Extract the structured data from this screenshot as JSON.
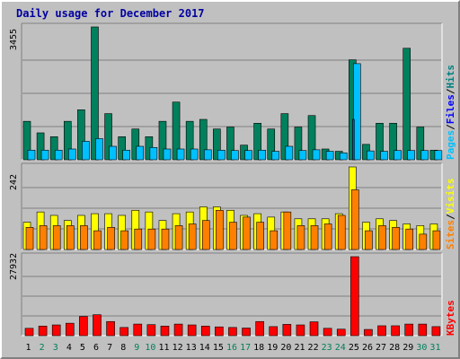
{
  "chart_data": {
    "type": "bar",
    "title": "Daily usage for December 2017",
    "categories": [
      "1",
      "2",
      "3",
      "4",
      "5",
      "6",
      "7",
      "8",
      "9",
      "10",
      "11",
      "12",
      "13",
      "14",
      "15",
      "16",
      "17",
      "18",
      "19",
      "20",
      "21",
      "22",
      "23",
      "24",
      "25",
      "26",
      "27",
      "28",
      "29",
      "30",
      "31"
    ],
    "weekend_days": [
      "2",
      "3",
      "9",
      "10",
      "16",
      "17",
      "23",
      "24",
      "30",
      "31"
    ],
    "panels": [
      {
        "id": "hits_files_pages",
        "ymax": 3455,
        "ymax_label": "3455",
        "right_labels": [
          {
            "text": "Hits",
            "color": "#008080"
          },
          {
            "text": "/",
            "color": "#000000"
          },
          {
            "text": "Files",
            "color": "#0000ff"
          },
          {
            "text": "/",
            "color": "#000000"
          },
          {
            "text": "Pages",
            "color": "#00c0ff"
          }
        ],
        "series": [
          {
            "name": "Hits",
            "color": "#00805c",
            "values": [
              1000,
              700,
              600,
              1000,
              1300,
              3455,
              1200,
              600,
              800,
              600,
              1000,
              1500,
              1000,
              1050,
              800,
              850,
              380,
              950,
              800,
              1200,
              850,
              1150,
              280,
              220,
              2600,
              400,
              950,
              950,
              2900,
              850,
              250
            ]
          },
          {
            "name": "Files",
            "color": "#00c0ff",
            "values": [
              250,
              250,
              250,
              280,
              480,
              550,
              350,
              250,
              350,
              320,
              280,
              280,
              280,
              260,
              250,
              240,
              240,
              250,
              220,
              350,
              240,
              260,
              220,
              180,
              2500,
              230,
              220,
              240,
              240,
              240,
              240
            ]
          },
          {
            "name": "Pages",
            "color": "#2050a0",
            "values": [
              0,
              0,
              0,
              0,
              0,
              0,
              0,
              0,
              0,
              0,
              0,
              0,
              0,
              0,
              0,
              0,
              0,
              0,
              0,
              0,
              0,
              0,
              0,
              0,
              1050,
              0,
              0,
              0,
              0,
              0,
              0
            ]
          }
        ]
      },
      {
        "id": "visits_sites",
        "ymax": 242,
        "ymax_label": "242",
        "right_labels": [
          {
            "text": "Visits",
            "color": "#ffff00"
          },
          {
            "text": "/",
            "color": "#000000"
          },
          {
            "text": "Sites",
            "color": "#ff8000"
          }
        ],
        "series": [
          {
            "name": "Visits",
            "color": "#ffff00",
            "values": [
              80,
              110,
              100,
              85,
              100,
              105,
              105,
              100,
              115,
              110,
              85,
              105,
              110,
              125,
              125,
              115,
              100,
              105,
              95,
              110,
              90,
              90,
              90,
              105,
              242,
              80,
              90,
              85,
              75,
              70,
              75
            ]
          },
          {
            "name": "Sites",
            "color": "#ff8000",
            "values": [
              65,
              70,
              70,
              70,
              70,
              55,
              65,
              55,
              60,
              60,
              60,
              70,
              75,
              85,
              115,
              80,
              95,
              80,
              55,
              110,
              70,
              70,
              75,
              100,
              175,
              55,
              70,
              65,
              60,
              45,
              55
            ]
          }
        ]
      },
      {
        "id": "kbytes",
        "ymax": 27932,
        "ymax_label": "27932",
        "right_labels": [
          {
            "text": "KBytes",
            "color": "#ff0000"
          }
        ],
        "series": [
          {
            "name": "KBytes",
            "color": "#ff0000",
            "values": [
              2600,
              3400,
              3800,
              4400,
              6800,
              7400,
              5000,
              2900,
              4100,
              3900,
              3400,
              4100,
              3800,
              3400,
              3100,
              2900,
              2700,
              5000,
              3200,
              4000,
              3800,
              4900,
              2600,
              2300,
              27932,
              2200,
              3500,
              3500,
              4100,
              4100,
              3200
            ]
          }
        ]
      }
    ]
  }
}
